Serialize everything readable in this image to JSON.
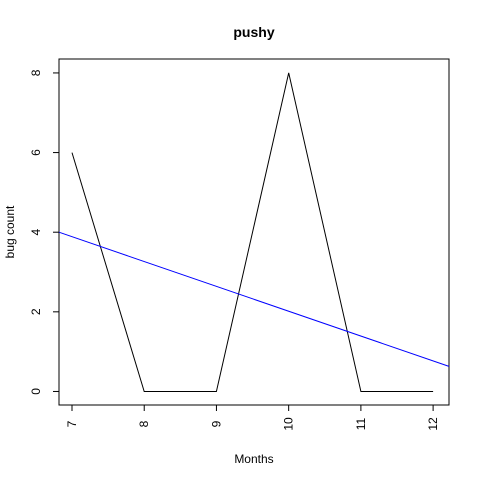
{
  "chart_data": {
    "type": "line",
    "title": "pushy",
    "xlabel": "Months",
    "ylabel": "bug count",
    "x": [
      7,
      8,
      9,
      10,
      11,
      12
    ],
    "series": [
      {
        "values": [
          6,
          0,
          0,
          8,
          0,
          0
        ],
        "color": "#000000"
      }
    ],
    "trend_line": {
      "start": [
        6.82,
        4.0
      ],
      "end": [
        12.22,
        0.63
      ],
      "color": "#0000ff"
    },
    "xticks": [
      "7",
      "8",
      "9",
      "10",
      "11",
      "12"
    ],
    "yticks": [
      "0",
      "2",
      "4",
      "6",
      "8"
    ],
    "xlim": [
      6.82,
      12.22
    ],
    "ylim": [
      -0.34,
      8.35
    ],
    "grid": false,
    "legend": "none"
  }
}
